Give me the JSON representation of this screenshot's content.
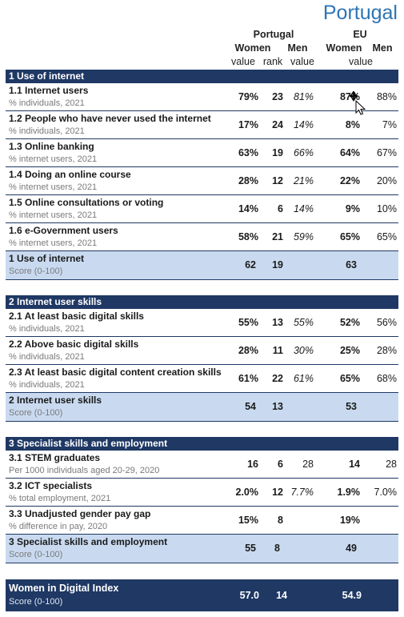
{
  "country": "Portugal",
  "headers": {
    "portugal": "Portugal",
    "eu": "EU",
    "women": "Women",
    "men": "Men",
    "value": "value",
    "rank": "rank",
    "eu_women": "Women",
    "eu_men": "Men",
    "eu_value": "value"
  },
  "sections": [
    {
      "title": "1 Use of internet",
      "rows": [
        {
          "label": "1.1 Internet users",
          "unit": "% individuals, 2021",
          "pw": "79%",
          "rank": "23",
          "pm": "81%",
          "ew": "87%",
          "em": "88%"
        },
        {
          "label": "1.2 People who have never used the internet",
          "unit": "% individuals, 2021",
          "pw": "17%",
          "rank": "24",
          "pm": "14%",
          "ew": "8%",
          "em": "7%"
        },
        {
          "label": "1.3 Online banking",
          "unit": "% internet users, 2021",
          "pw": "63%",
          "rank": "19",
          "pm": "66%",
          "ew": "64%",
          "em": "67%"
        },
        {
          "label": "1.4 Doing an online course",
          "unit": "% internet users, 2021",
          "pw": "28%",
          "rank": "12",
          "pm": "21%",
          "ew": "22%",
          "em": "20%"
        },
        {
          "label": "1.5 Online consultations or voting",
          "unit": "% internet users, 2021",
          "pw": "14%",
          "rank": "6",
          "pm": "14%",
          "ew": "9%",
          "em": "10%"
        },
        {
          "label": "1.6 e-Government users",
          "unit": "% internet users, 2021",
          "pw": "58%",
          "rank": "21",
          "pm": "59%",
          "ew": "65%",
          "em": "65%"
        }
      ],
      "score": {
        "label": "1 Use of internet",
        "unit": "Score (0-100)",
        "pw": "62",
        "rank": "19",
        "ew": "63"
      }
    },
    {
      "title": "2 Internet user skills",
      "rows": [
        {
          "label": "2.1 At least basic digital skills",
          "unit": "% individuals, 2021",
          "pw": "55%",
          "rank": "13",
          "pm": "55%",
          "ew": "52%",
          "em": "56%"
        },
        {
          "label": "2.2 Above basic digital skills",
          "unit": "% individuals, 2021",
          "pw": "28%",
          "rank": "11",
          "pm": "30%",
          "ew": "25%",
          "em": "28%"
        },
        {
          "label": "2.3 At least basic digital content creation skills",
          "unit": "% individuals, 2021",
          "pw": "61%",
          "rank": "22",
          "pm": "61%",
          "ew": "65%",
          "em": "68%"
        }
      ],
      "score": {
        "label": "2 Internet user skills",
        "unit": "Score (0-100)",
        "pw": "54",
        "rank": "13",
        "ew": "53"
      }
    },
    {
      "title": "3 Specialist skills and employment",
      "rows": [
        {
          "label": "3.1 STEM graduates",
          "unit": "Per 1000 individuals aged 20-29, 2020",
          "pw": "16",
          "rank": "6",
          "pm": "28",
          "ew": "14",
          "em": "28"
        },
        {
          "label": "3.2 ICT specialists",
          "unit": "% total employment, 2021",
          "pw": "2.0%",
          "rank": "12",
          "pm": "7.7%",
          "ew": "1.9%",
          "em": "7.0%"
        },
        {
          "label": "3.3 Unadjusted gender pay gap",
          "unit": "% difference in pay, 2020",
          "pw": "15%",
          "rank": "8",
          "pm": "",
          "ew": "19%",
          "em": ""
        }
      ],
      "score": {
        "label": "3 Specialist skills and employment",
        "unit": "Score (0-100)",
        "pw": "55",
        "rank": "8",
        "ew": "49"
      }
    }
  ],
  "index": {
    "label": "Women in Digital Index",
    "unit": "Score (0-100)",
    "pw": "57.0",
    "rank": "14",
    "ew": "54.9"
  }
}
